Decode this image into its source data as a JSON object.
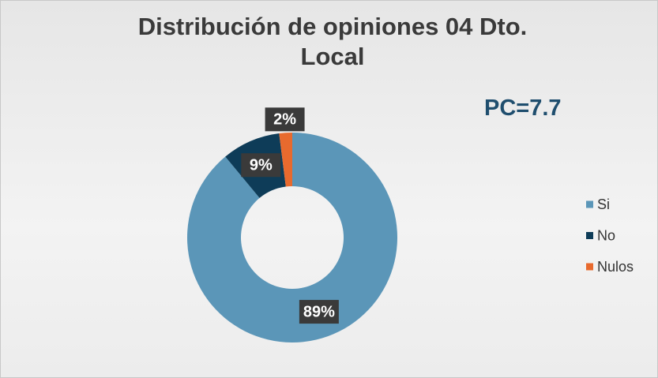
{
  "chart_data": {
    "type": "donut",
    "title": "Distribución de opiniones 04 Dto. Local",
    "annotation": "PC=7.7",
    "categories": [
      "Si",
      "No",
      "Nulos"
    ],
    "values": [
      89,
      9,
      2
    ],
    "value_labels": [
      "89%",
      "9%",
      "2%"
    ],
    "colors": [
      "#5b96b8",
      "#0e3c58",
      "#e86a2e"
    ],
    "legend": "right"
  }
}
